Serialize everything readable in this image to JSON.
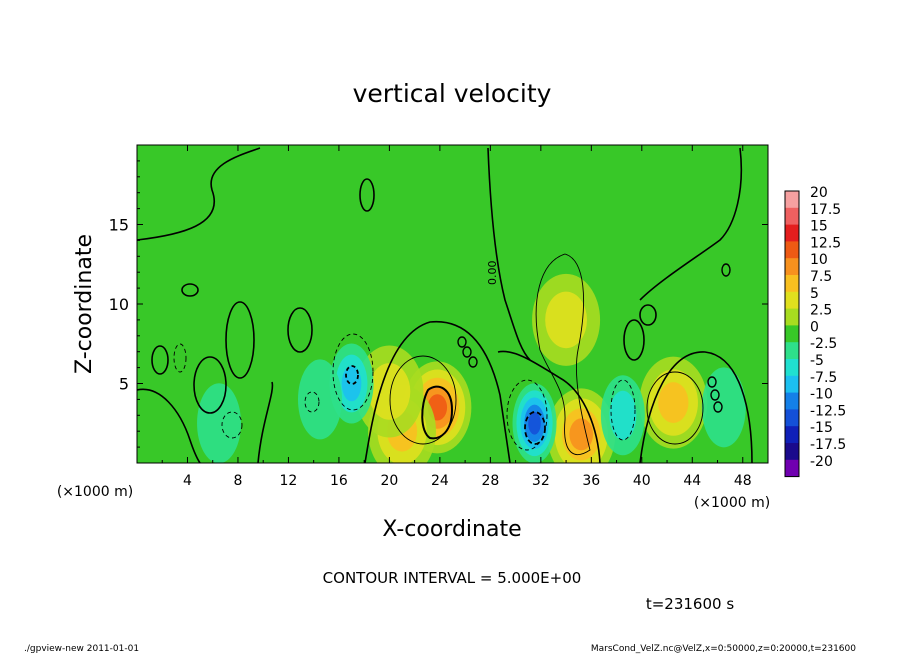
{
  "chart_data": {
    "type": "heatmap",
    "title": "vertical velocity",
    "xlabel": "X-coordinate",
    "ylabel": "Z-coordinate",
    "x_unit_left": "(×1000 m)",
    "x_unit_right": "(×1000 m)",
    "xlim": [
      0,
      50
    ],
    "ylim": [
      0,
      20
    ],
    "xticks": [
      4,
      8,
      12,
      16,
      20,
      24,
      28,
      32,
      36,
      40,
      44,
      48
    ],
    "yticks": [
      5,
      10,
      15
    ],
    "colorbar": {
      "labels": [
        "20",
        "17.5",
        "15",
        "12.5",
        "10",
        "7.5",
        "5",
        "2.5",
        "0",
        "-2.5",
        "-5",
        "-7.5",
        "-10",
        "-12.5",
        "-15",
        "-17.5",
        "-20"
      ],
      "colors": [
        "#f6a0a0",
        "#ef6060",
        "#e41e1e",
        "#ee5a14",
        "#f7911e",
        "#f8c020",
        "#e0e01e",
        "#a8dc20",
        "#38c828",
        "#2ee08a",
        "#20e0d0",
        "#1cc0f0",
        "#1480e8",
        "#1450d8",
        "#1020b8",
        "#1a0a8c",
        "#7000b0"
      ]
    },
    "background_value": 0,
    "features": [
      {
        "kind": "updraft",
        "x": 23.8,
        "z": 3.5,
        "peak": 12.5
      },
      {
        "kind": "updraft",
        "x": 21.0,
        "z": 2.0,
        "peak": 7.5
      },
      {
        "kind": "updraft",
        "x": 35.2,
        "z": 1.8,
        "peak": 10
      },
      {
        "kind": "updraft",
        "x": 34.0,
        "z": 9.0,
        "peak": 5
      },
      {
        "kind": "updraft",
        "x": 42.5,
        "z": 3.8,
        "peak": 7.5
      },
      {
        "kind": "updraft",
        "x": 20.0,
        "z": 4.5,
        "peak": 5
      },
      {
        "kind": "downdraft",
        "x": 31.5,
        "z": 2.5,
        "peak": -12.5
      },
      {
        "kind": "downdraft",
        "x": 17.0,
        "z": 5.0,
        "peak": -7.5
      },
      {
        "kind": "downdraft",
        "x": 38.5,
        "z": 3.0,
        "peak": -5
      },
      {
        "kind": "downdraft",
        "x": 6.5,
        "z": 2.5,
        "peak": -2.5
      },
      {
        "kind": "downdraft",
        "x": 14.5,
        "z": 4.0,
        "peak": -2.5
      },
      {
        "kind": "downdraft",
        "x": 46.5,
        "z": 3.5,
        "peak": -2.5
      }
    ],
    "contour_label": "0.00",
    "contour_interval_text": "CONTOUR INTERVAL = 5.000E+00",
    "time_text": "t=231600 s"
  },
  "footer": {
    "program": "./gpview-new  2011-01-01",
    "source": "MarsCond_VelZ.nc@VelZ,x=0:50000,z=0:20000,t=231600"
  }
}
